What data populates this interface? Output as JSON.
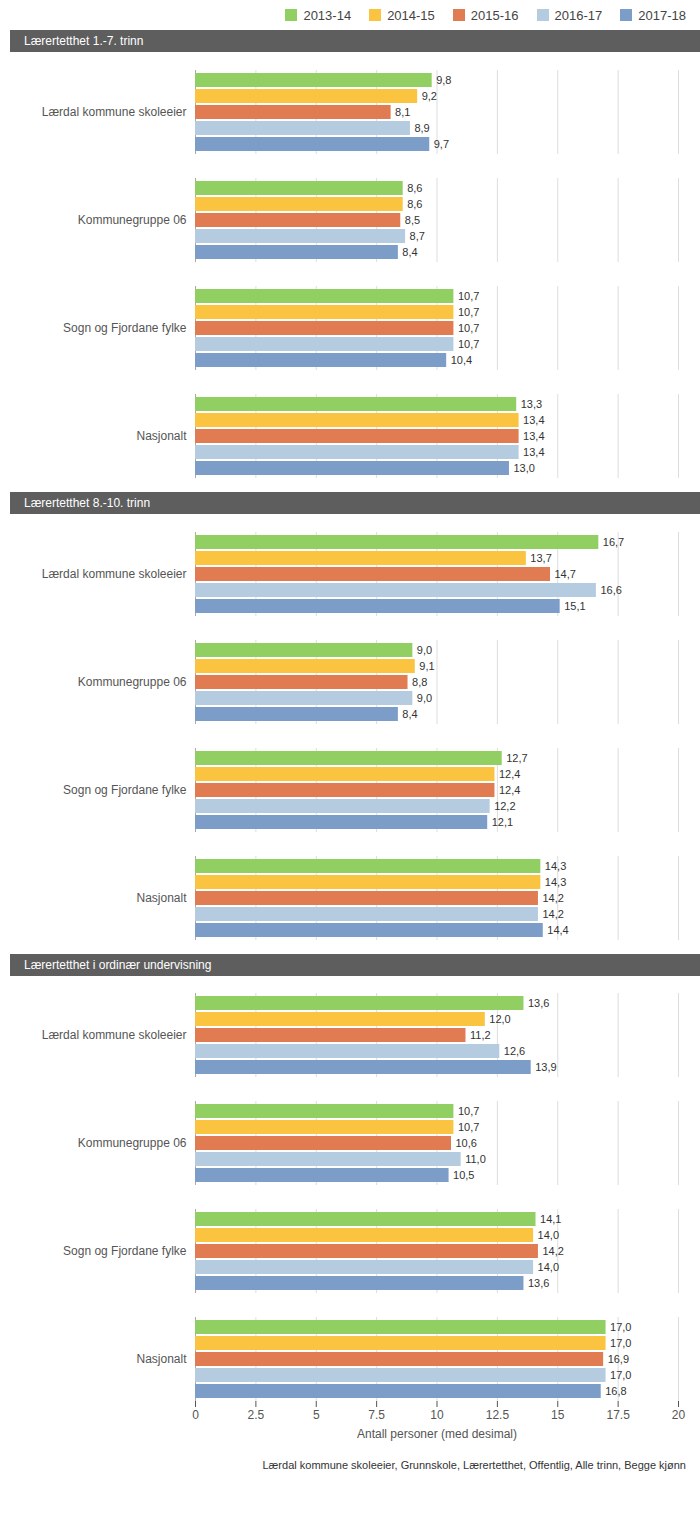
{
  "chart_data": [
    {
      "type": "bar",
      "title": "Lærertetthet 1.-7. trinn",
      "orientation": "horizontal",
      "legend": "top",
      "categories": [
        "Lærdal kommune skoleeier",
        "Kommunegruppe 06",
        "Sogn og Fjordane fylke",
        "Nasjonalt"
      ],
      "series": [
        {
          "name": "2013-14",
          "color": "#92cf63",
          "values": [
            9.8,
            8.6,
            10.7,
            13.3
          ],
          "value_labels": [
            "9,8",
            "8,6",
            "10,7",
            "13,3"
          ]
        },
        {
          "name": "2014-15",
          "color": "#fbc440",
          "values": [
            9.2,
            8.6,
            10.7,
            13.4
          ],
          "value_labels": [
            "9,2",
            "8,6",
            "10,7",
            "13,4"
          ]
        },
        {
          "name": "2015-16",
          "color": "#e07b52",
          "values": [
            8.1,
            8.5,
            10.7,
            13.4
          ],
          "value_labels": [
            "8,1",
            "8,5",
            "10,7",
            "13,4"
          ]
        },
        {
          "name": "2016-17",
          "color": "#b5cbe0",
          "values": [
            8.9,
            8.7,
            10.7,
            13.4
          ],
          "value_labels": [
            "8,9",
            "8,7",
            "10,7",
            "13,4"
          ]
        },
        {
          "name": "2017-18",
          "color": "#7b9dc7",
          "values": [
            9.7,
            8.4,
            10.4,
            13.0
          ],
          "value_labels": [
            "9,7",
            "8,4",
            "10,4",
            "13,0"
          ]
        }
      ],
      "xlim": [
        0,
        20
      ],
      "xticks": [
        0,
        2.5,
        5,
        7.5,
        10,
        12.5,
        15,
        17.5,
        20
      ],
      "grid": true,
      "data_labels": true,
      "tick_labels": "y"
    },
    {
      "type": "bar",
      "title": "Lærertetthet 8.-10. trinn",
      "orientation": "horizontal",
      "categories": [
        "Lærdal kommune skoleeier",
        "Kommunegruppe 06",
        "Sogn og Fjordane fylke",
        "Nasjonalt"
      ],
      "series": [
        {
          "name": "2013-14",
          "color": "#92cf63",
          "values": [
            16.7,
            9.0,
            12.7,
            14.3
          ],
          "value_labels": [
            "16,7",
            "9,0",
            "12,7",
            "14,3"
          ]
        },
        {
          "name": "2014-15",
          "color": "#fbc440",
          "values": [
            13.7,
            9.1,
            12.4,
            14.3
          ],
          "value_labels": [
            "13,7",
            "9,1",
            "12,4",
            "14,3"
          ]
        },
        {
          "name": "2015-16",
          "color": "#e07b52",
          "values": [
            14.7,
            8.8,
            12.4,
            14.2
          ],
          "value_labels": [
            "14,7",
            "8,8",
            "12,4",
            "14,2"
          ]
        },
        {
          "name": "2016-17",
          "color": "#b5cbe0",
          "values": [
            16.6,
            9.0,
            12.2,
            14.2
          ],
          "value_labels": [
            "16,6",
            "9,0",
            "12,2",
            "14,2"
          ]
        },
        {
          "name": "2017-18",
          "color": "#7b9dc7",
          "values": [
            15.1,
            8.4,
            12.1,
            14.4
          ],
          "value_labels": [
            "15,1",
            "8,4",
            "12,1",
            "14,4"
          ]
        }
      ],
      "xlim": [
        0,
        20
      ],
      "xticks": [
        0,
        2.5,
        5,
        7.5,
        10,
        12.5,
        15,
        17.5,
        20
      ],
      "grid": true,
      "data_labels": true,
      "tick_labels": "y"
    },
    {
      "type": "bar",
      "title": "Lærertetthet i ordinær undervisning",
      "orientation": "horizontal",
      "categories": [
        "Lærdal kommune skoleeier",
        "Kommunegruppe 06",
        "Sogn og Fjordane fylke",
        "Nasjonalt"
      ],
      "series": [
        {
          "name": "2013-14",
          "color": "#92cf63",
          "values": [
            13.6,
            10.7,
            14.1,
            17.0
          ],
          "value_labels": [
            "13,6",
            "10,7",
            "14,1",
            "17,0"
          ]
        },
        {
          "name": "2014-15",
          "color": "#fbc440",
          "values": [
            12.0,
            10.7,
            14.0,
            17.0
          ],
          "value_labels": [
            "12,0",
            "10,7",
            "14,0",
            "17,0"
          ]
        },
        {
          "name": "2015-16",
          "color": "#e07b52",
          "values": [
            11.2,
            10.6,
            14.2,
            16.9
          ],
          "value_labels": [
            "11,2",
            "10,6",
            "14,2",
            "16,9"
          ]
        },
        {
          "name": "2016-17",
          "color": "#b5cbe0",
          "values": [
            12.6,
            11.0,
            14.0,
            17.0
          ],
          "value_labels": [
            "12,6",
            "11,0",
            "14,0",
            "17,0"
          ]
        },
        {
          "name": "2017-18",
          "color": "#7b9dc7",
          "values": [
            13.9,
            10.5,
            13.6,
            16.8
          ],
          "value_labels": [
            "13,9",
            "10,5",
            "13,6",
            "16,8"
          ]
        }
      ],
      "xlim": [
        0,
        20
      ],
      "xticks": [
        0,
        2.5,
        5,
        7.5,
        10,
        12.5,
        15,
        17.5,
        20
      ],
      "xlabel": "Antall personer (med desimal)",
      "caption": "Lærdal kommune skoleeier, Grunnskole, Lærertetthet, Offentlig, Alle trinn, Begge kjønn",
      "grid": true,
      "data_labels": true
    }
  ]
}
